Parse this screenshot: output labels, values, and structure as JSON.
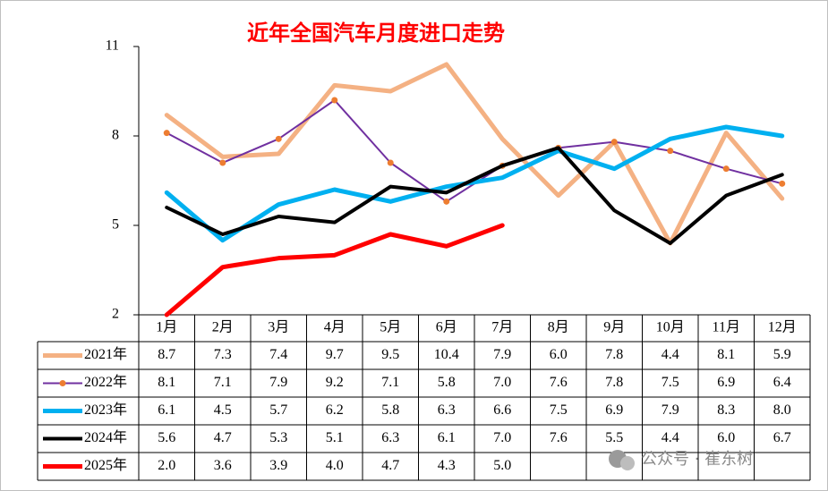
{
  "chart_data": {
    "type": "line",
    "title": "近年全国汽车月度进口走势",
    "categories": [
      "1月",
      "2月",
      "3月",
      "4月",
      "5月",
      "6月",
      "7月",
      "8月",
      "9月",
      "10月",
      "11月",
      "12月"
    ],
    "ylim": [
      2,
      11
    ],
    "yticks": [
      2,
      5,
      8,
      11
    ],
    "series": [
      {
        "name": "2021年",
        "color": "#f4b183",
        "width": 5,
        "values": [
          8.7,
          7.3,
          7.4,
          9.7,
          9.5,
          10.4,
          7.9,
          6.0,
          7.8,
          4.4,
          8.1,
          5.9
        ],
        "value_labels": [
          "8.7",
          "7.3",
          "7.4",
          "9.7",
          "9.5",
          "10.4",
          "7.9",
          "6.0",
          "7.8",
          "4.4",
          "8.1",
          "5.9"
        ]
      },
      {
        "name": "2022年",
        "color": "#7030a0",
        "marker_color": "#ed7d31",
        "width": 2,
        "values": [
          8.1,
          7.1,
          7.9,
          9.2,
          7.1,
          5.8,
          7.0,
          7.6,
          7.8,
          7.5,
          6.9,
          6.4
        ],
        "value_labels": [
          "8.1",
          "7.1",
          "7.9",
          "9.2",
          "7.1",
          "5.8",
          "7.0",
          "7.6",
          "7.8",
          "7.5",
          "6.9",
          "6.4"
        ]
      },
      {
        "name": "2023年",
        "color": "#00b0f0",
        "width": 5,
        "values": [
          6.1,
          4.5,
          5.7,
          6.2,
          5.8,
          6.3,
          6.6,
          7.5,
          6.9,
          7.9,
          8.3,
          8.0
        ],
        "value_labels": [
          "6.1",
          "4.5",
          "5.7",
          "6.2",
          "5.8",
          "6.3",
          "6.6",
          "7.5",
          "6.9",
          "7.9",
          "8.3",
          "8.0"
        ]
      },
      {
        "name": "2024年",
        "color": "#000000",
        "width": 4,
        "values": [
          5.6,
          4.7,
          5.3,
          5.1,
          6.3,
          6.1,
          7.0,
          7.6,
          5.5,
          4.4,
          6.0,
          6.7
        ],
        "value_labels": [
          "5.6",
          "4.7",
          "5.3",
          "5.1",
          "6.3",
          "6.1",
          "7.0",
          "7.6",
          "5.5",
          "4.4",
          "6.0",
          "6.7"
        ]
      },
      {
        "name": "2025年",
        "color": "#ff0000",
        "width": 5,
        "values": [
          2.0,
          3.6,
          3.9,
          4.0,
          4.7,
          4.3,
          5.0,
          null,
          null,
          null,
          null,
          null
        ],
        "value_labels": [
          "2.0",
          "3.6",
          "3.9",
          "4.0",
          "4.7",
          "4.3",
          "5.0",
          null,
          null,
          null,
          null,
          null
        ]
      }
    ],
    "watermark": "公众号 · 崔东树"
  }
}
